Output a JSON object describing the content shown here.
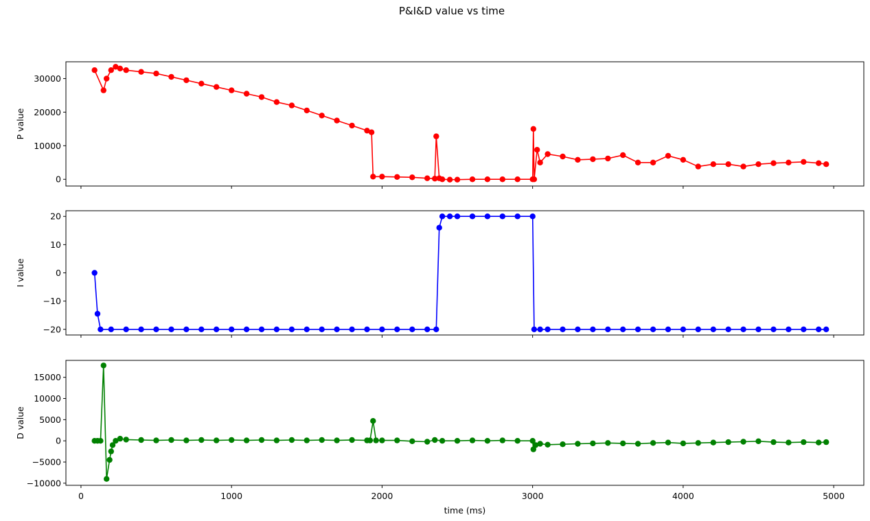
{
  "figure": {
    "title": "P&I&D value vs time"
  },
  "chart_data": [
    {
      "type": "line",
      "title": "",
      "xlabel": "",
      "ylabel": "P value",
      "xlim": [
        -100,
        5200
      ],
      "ylim": [
        -2000,
        35000
      ],
      "xticks": [
        0,
        1000,
        2000,
        3000,
        4000,
        5000
      ],
      "yticks": [
        0,
        10000,
        20000,
        30000
      ],
      "grid": false,
      "color": "#ff0000",
      "marker": "circle",
      "series": [
        {
          "x": [
            90,
            150,
            170,
            200,
            230,
            260,
            300,
            400,
            500,
            600,
            700,
            800,
            900,
            1000,
            1100,
            1200,
            1300,
            1400,
            1500,
            1600,
            1700,
            1800,
            1900,
            1930,
            1940,
            2000,
            2100,
            2200,
            2300,
            2350,
            2360,
            2380,
            2400,
            2450,
            2500,
            2600,
            2700,
            2800,
            2900,
            3000,
            3005,
            3010,
            3030,
            3050,
            3100,
            3200,
            3300,
            3400,
            3500,
            3600,
            3700,
            3800,
            3900,
            4000,
            4100,
            4200,
            4300,
            4400,
            4500,
            4600,
            4700,
            4800,
            4900,
            4950
          ],
          "y": [
            32500,
            26500,
            30000,
            32500,
            33500,
            33000,
            32500,
            32000,
            31500,
            30500,
            29500,
            28500,
            27500,
            26500,
            25500,
            24500,
            23000,
            22000,
            20500,
            19000,
            17500,
            16000,
            14500,
            14000,
            800,
            800,
            700,
            600,
            300,
            200,
            12800,
            300,
            0,
            -100,
            -100,
            0,
            0,
            0,
            0,
            0,
            15000,
            0,
            8800,
            5000,
            7500,
            6800,
            5800,
            6000,
            6200,
            7200,
            5000,
            5000,
            7000,
            5800,
            3800,
            4500,
            4500,
            3800,
            4500,
            4800,
            5000,
            5200,
            4800,
            4500
          ]
        }
      ]
    },
    {
      "type": "line",
      "title": "",
      "xlabel": "",
      "ylabel": "I value",
      "xlim": [
        -100,
        5200
      ],
      "ylim": [
        -22,
        22
      ],
      "xticks": [
        0,
        1000,
        2000,
        3000,
        4000,
        5000
      ],
      "yticks": [
        -20,
        -10,
        0,
        10,
        20
      ],
      "grid": false,
      "color": "#0000ff",
      "marker": "circle",
      "series": [
        {
          "x": [
            90,
            110,
            130,
            200,
            300,
            400,
            500,
            600,
            700,
            800,
            900,
            1000,
            1100,
            1200,
            1300,
            1400,
            1500,
            1600,
            1700,
            1800,
            1900,
            2000,
            2100,
            2200,
            2300,
            2360,
            2380,
            2400,
            2450,
            2500,
            2600,
            2700,
            2800,
            2900,
            3000,
            3010,
            3050,
            3100,
            3200,
            3300,
            3400,
            3500,
            3600,
            3700,
            3800,
            3900,
            4000,
            4100,
            4200,
            4300,
            4400,
            4500,
            4600,
            4700,
            4800,
            4900,
            4950
          ],
          "y": [
            0,
            -14.5,
            -20,
            -20,
            -20,
            -20,
            -20,
            -20,
            -20,
            -20,
            -20,
            -20,
            -20,
            -20,
            -20,
            -20,
            -20,
            -20,
            -20,
            -20,
            -20,
            -20,
            -20,
            -20,
            -20,
            -20,
            16,
            20,
            20,
            20,
            20,
            20,
            20,
            20,
            20,
            -20,
            -20,
            -20,
            -20,
            -20,
            -20,
            -20,
            -20,
            -20,
            -20,
            -20,
            -20,
            -20,
            -20,
            -20,
            -20,
            -20,
            -20,
            -20,
            -20,
            -20,
            -20
          ]
        }
      ]
    },
    {
      "type": "line",
      "title": "",
      "xlabel": "time (ms)",
      "ylabel": "D value",
      "xlim": [
        -100,
        5200
      ],
      "ylim": [
        -10500,
        19000
      ],
      "xticks": [
        0,
        1000,
        2000,
        3000,
        4000,
        5000
      ],
      "yticks": [
        -10000,
        -5000,
        0,
        5000,
        10000,
        15000
      ],
      "grid": false,
      "color": "#008000",
      "marker": "circle",
      "series": [
        {
          "x": [
            90,
            110,
            130,
            150,
            170,
            190,
            200,
            210,
            230,
            260,
            300,
            400,
            500,
            600,
            700,
            800,
            900,
            1000,
            1100,
            1200,
            1300,
            1400,
            1500,
            1600,
            1700,
            1800,
            1900,
            1920,
            1940,
            1960,
            2000,
            2100,
            2200,
            2300,
            2350,
            2400,
            2500,
            2600,
            2700,
            2800,
            2900,
            3000,
            3005,
            3020,
            3050,
            3100,
            3200,
            3300,
            3400,
            3500,
            3600,
            3700,
            3800,
            3900,
            4000,
            4100,
            4200,
            4300,
            4400,
            4500,
            4600,
            4700,
            4800,
            4900,
            4950
          ],
          "y": [
            0,
            0,
            0,
            17800,
            -9000,
            -4500,
            -2500,
            -1000,
            0,
            500,
            300,
            200,
            100,
            200,
            100,
            200,
            100,
            200,
            100,
            200,
            100,
            200,
            100,
            200,
            100,
            200,
            100,
            100,
            4700,
            100,
            100,
            100,
            -100,
            -200,
            200,
            0,
            0,
            100,
            0,
            100,
            0,
            0,
            -2000,
            -1000,
            -700,
            -900,
            -800,
            -700,
            -600,
            -500,
            -600,
            -700,
            -500,
            -400,
            -600,
            -500,
            -400,
            -300,
            -200,
            -100,
            -300,
            -400,
            -300,
            -400,
            -300
          ]
        }
      ]
    }
  ]
}
